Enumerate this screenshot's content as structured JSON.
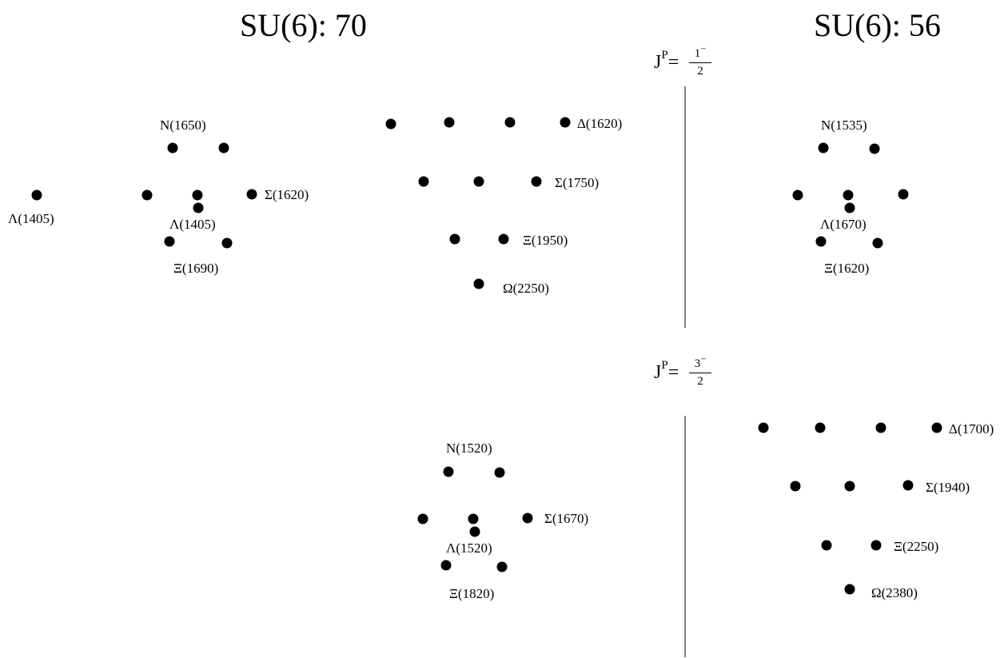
{
  "headings": {
    "left": "SU(6): 70",
    "right": "SU(6): 56"
  },
  "jp_labels": [
    {
      "j": "J",
      "p": "P",
      "eq": "=",
      "num": "1",
      "num_sign": "−",
      "den": "2"
    },
    {
      "j": "J",
      "p": "P",
      "eq": "=",
      "num": "3",
      "num_sign": "−",
      "den": "2"
    }
  ],
  "particle_labels": {
    "octet70a_lambda_singlet": "Λ(1405)",
    "octet70a_N": "N(1650)",
    "octet70a_sigma": "Σ(1620)",
    "octet70a_lambda": "Λ(1405)",
    "octet70a_xi": "Ξ(1690)",
    "decuplet70a_delta": "Δ(1620)",
    "decuplet70a_sigma": "Σ(1750)",
    "decuplet70a_xi": "Ξ(1950)",
    "decuplet70a_omega": "Ω(2250)",
    "octet56a_N": "N(1535)",
    "octet56a_lambda": "Λ(1670)",
    "octet56a_xi": "Ξ(1620)",
    "octet70b_N": "N(1520)",
    "octet70b_sigma": "Σ(1670)",
    "octet70b_lambda": "Λ(1520)",
    "octet70b_xi": "Ξ(1820)",
    "decuplet56b_delta": "Δ(1700)",
    "decuplet56b_sigma": "Σ(1940)",
    "decuplet56b_xi": "Ξ(2250)",
    "decuplet56b_omega": "Ω(2380)"
  }
}
